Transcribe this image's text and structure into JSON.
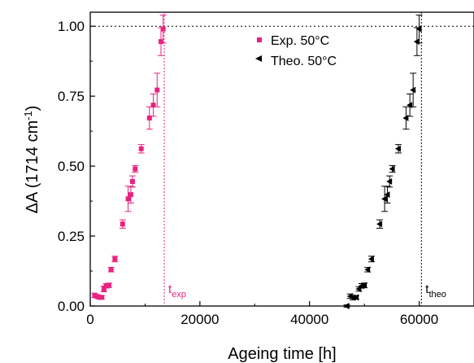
{
  "chart_data": {
    "type": "scatter",
    "xlabel": "Ageing time [h]",
    "ylabel": {
      "prefix": "ΔA (1714 cm",
      "sup": "-1",
      "suffix": ")"
    },
    "xlim": [
      0,
      70000
    ],
    "ylim": [
      0,
      1.05
    ],
    "xticks": [
      0,
      20000,
      40000,
      60000
    ],
    "yticks": [
      0.0,
      0.25,
      0.5,
      0.75,
      1.0
    ],
    "xtick_labels": [
      "0",
      "20000",
      "40000",
      "60000"
    ],
    "ytick_labels": [
      "0.00",
      "0.25",
      "0.50",
      "0.75",
      "1.00"
    ],
    "grid": false,
    "legend_position": "top-right",
    "reference_line_y": 1.0,
    "series": [
      {
        "name": "Exp. 50°C",
        "color": "#e8237f",
        "marker": "square",
        "points": [
          {
            "x": 800,
            "y": 0.038,
            "err": 0.008
          },
          {
            "x": 1300,
            "y": 0.034,
            "err": 0.006
          },
          {
            "x": 1700,
            "y": 0.031,
            "err": 0.006
          },
          {
            "x": 2100,
            "y": 0.031,
            "err": 0.006
          },
          {
            "x": 2500,
            "y": 0.061,
            "err": 0.01
          },
          {
            "x": 2900,
            "y": 0.072,
            "err": 0.008
          },
          {
            "x": 3400,
            "y": 0.074,
            "err": 0.008
          },
          {
            "x": 3800,
            "y": 0.13,
            "err": 0.008
          },
          {
            "x": 4500,
            "y": 0.168,
            "err": 0.01
          },
          {
            "x": 5900,
            "y": 0.293,
            "err": 0.015
          },
          {
            "x": 6900,
            "y": 0.383,
            "err": 0.045
          },
          {
            "x": 7400,
            "y": 0.398,
            "err": 0.03
          },
          {
            "x": 7700,
            "y": 0.445,
            "err": 0.02
          },
          {
            "x": 8200,
            "y": 0.49,
            "err": 0.012
          },
          {
            "x": 9300,
            "y": 0.562,
            "err": 0.015
          },
          {
            "x": 10800,
            "y": 0.672,
            "err": 0.04
          },
          {
            "x": 11500,
            "y": 0.718,
            "err": 0.04
          },
          {
            "x": 12200,
            "y": 0.772,
            "err": 0.06
          },
          {
            "x": 12900,
            "y": 0.945,
            "err": 0.05
          },
          {
            "x": 13300,
            "y": 0.99,
            "err": 0.05
          }
        ]
      },
      {
        "name": "Theo. 50°C",
        "color": "#000000",
        "marker": "triangle-left",
        "points": [
          {
            "x": 46800,
            "y": 0.0,
            "err": 0.004
          },
          {
            "x": 47400,
            "y": 0.035,
            "err": 0.008
          },
          {
            "x": 47900,
            "y": 0.03,
            "err": 0.008
          },
          {
            "x": 48500,
            "y": 0.031,
            "err": 0.006
          },
          {
            "x": 49000,
            "y": 0.061,
            "err": 0.008
          },
          {
            "x": 49500,
            "y": 0.072,
            "err": 0.008
          },
          {
            "x": 50000,
            "y": 0.074,
            "err": 0.008
          },
          {
            "x": 50600,
            "y": 0.13,
            "err": 0.008
          },
          {
            "x": 51300,
            "y": 0.168,
            "err": 0.01
          },
          {
            "x": 52800,
            "y": 0.293,
            "err": 0.015
          },
          {
            "x": 53700,
            "y": 0.383,
            "err": 0.045
          },
          {
            "x": 54200,
            "y": 0.398,
            "err": 0.03
          },
          {
            "x": 54600,
            "y": 0.445,
            "err": 0.02
          },
          {
            "x": 55100,
            "y": 0.49,
            "err": 0.012
          },
          {
            "x": 56200,
            "y": 0.562,
            "err": 0.015
          },
          {
            "x": 57600,
            "y": 0.672,
            "err": 0.04
          },
          {
            "x": 58300,
            "y": 0.718,
            "err": 0.04
          },
          {
            "x": 58900,
            "y": 0.772,
            "err": 0.06
          },
          {
            "x": 59600,
            "y": 0.945,
            "err": 0.05
          },
          {
            "x": 60000,
            "y": 0.99,
            "err": 0.05
          }
        ]
      }
    ],
    "annotations": [
      {
        "base": "t",
        "sub": "exp",
        "x": 13500,
        "color": "#e8237f"
      },
      {
        "base": "t",
        "sub": "theo",
        "x": 60400,
        "color": "#000000"
      }
    ]
  }
}
